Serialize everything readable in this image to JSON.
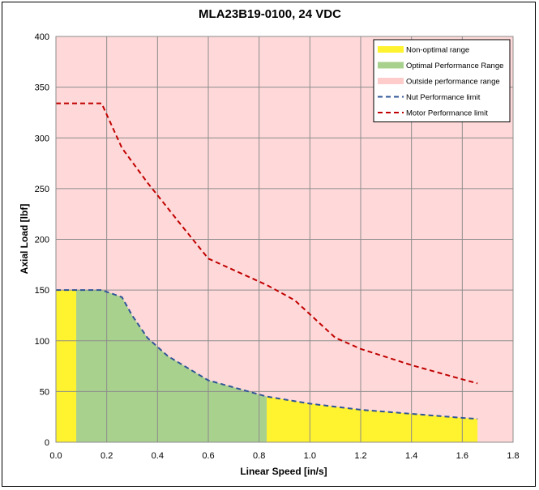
{
  "chart_data": {
    "type": "area",
    "title": "MLA23B19-0100, 24 VDC",
    "xlabel": "Linear Speed [in/s]",
    "ylabel": "Axial Load [lbf]",
    "xlim": [
      0,
      1.8
    ],
    "ylim": [
      0,
      400
    ],
    "x_ticks": [
      "0.0",
      "0.2",
      "0.4",
      "0.6",
      "0.8",
      "1.0",
      "1.2",
      "1.4",
      "1.6",
      "1.8"
    ],
    "y_ticks": [
      "0",
      "50",
      "100",
      "150",
      "200",
      "250",
      "300",
      "350",
      "400"
    ],
    "x_tick_values": [
      0,
      0.2,
      0.4,
      0.6,
      0.8,
      1.0,
      1.2,
      1.4,
      1.6,
      1.8
    ],
    "y_tick_values": [
      0,
      50,
      100,
      150,
      200,
      250,
      300,
      350,
      400
    ],
    "grid": true,
    "legend_position": "top-right",
    "colors": {
      "plot_background": "#FFD9D9",
      "non_optimal": "#FFF22E",
      "optimal": "#A9D18E",
      "outside": "#FFCCCC",
      "nut_limit": "#2F5597",
      "motor_limit": "#C00000",
      "grid": "#8C8C8C"
    },
    "legend": [
      {
        "label": "Non-optimal range",
        "kind": "fill",
        "color_key": "non_optimal"
      },
      {
        "label": "Optimal Performance Range",
        "kind": "fill",
        "color_key": "optimal"
      },
      {
        "label": "Outside performance range",
        "kind": "fill",
        "color_key": "outside"
      },
      {
        "label": "Nut Performance limit",
        "kind": "line",
        "color_key": "nut_limit"
      },
      {
        "label": "Motor Performance limit",
        "kind": "line",
        "color_key": "motor_limit"
      }
    ],
    "series": [
      {
        "name": "Nut Performance limit",
        "style": "dashed",
        "x": [
          0.0,
          0.08,
          0.18,
          0.26,
          0.3,
          0.36,
          0.44,
          0.6,
          0.83,
          1.0,
          1.2,
          1.4,
          1.6,
          1.66
        ],
        "y": [
          150,
          150,
          150,
          143,
          125,
          103,
          85,
          61,
          45,
          38,
          32,
          28,
          24,
          23
        ]
      },
      {
        "name": "Motor Performance limit",
        "style": "dashed",
        "x": [
          0.0,
          0.18,
          0.26,
          0.36,
          0.5,
          0.6,
          0.83,
          0.94,
          1.1,
          1.2,
          1.4,
          1.6,
          1.66
        ],
        "y": [
          334,
          334,
          290,
          256,
          212,
          181,
          155,
          140,
          103,
          92,
          76,
          62,
          58
        ]
      }
    ],
    "regions": [
      {
        "name": "Non-optimal range",
        "color_key": "non_optimal",
        "x_from": 0.0,
        "x_to": 0.08
      },
      {
        "name": "Optimal Performance Range",
        "color_key": "optimal",
        "x_from": 0.08,
        "x_to": 0.83
      },
      {
        "name": "Non-optimal range",
        "color_key": "non_optimal",
        "x_from": 0.83,
        "x_to": 1.66
      }
    ]
  }
}
